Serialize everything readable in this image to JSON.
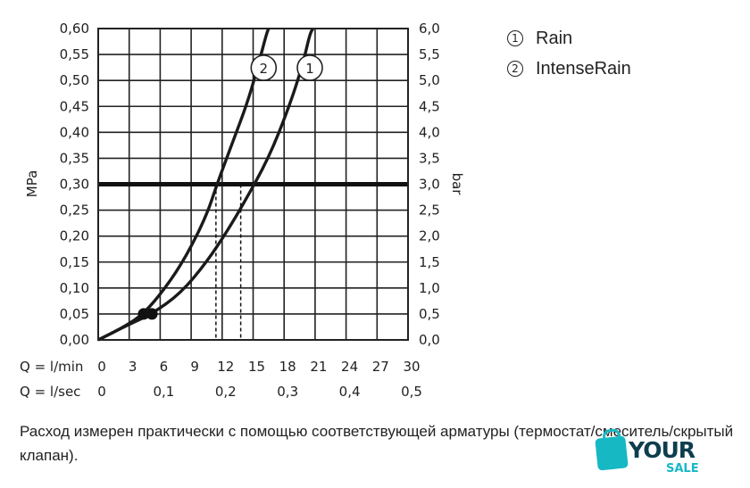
{
  "chart_data": {
    "type": "line",
    "x_unit_label": "Q = l/min",
    "x_secondary_label": "Q = l/sec",
    "xlim": [
      0,
      30
    ],
    "x_ticks": [
      "0",
      "3",
      "6",
      "9",
      "12",
      "15",
      "18",
      "21",
      "24",
      "27",
      "30"
    ],
    "x_secondary_ticks": [
      {
        "x": 0,
        "label": "0"
      },
      {
        "x": 6,
        "label": "0,1"
      },
      {
        "x": 12,
        "label": "0,2"
      },
      {
        "x": 18,
        "label": "0,3"
      },
      {
        "x": 24,
        "label": "0,4"
      },
      {
        "x": 30,
        "label": "0,5"
      }
    ],
    "ylabel": "MPa",
    "ylim": [
      0,
      0.6
    ],
    "y_ticks": [
      "0,00",
      "0,05",
      "0,10",
      "0,15",
      "0,20",
      "0,25",
      "0,30",
      "0,35",
      "0,40",
      "0,45",
      "0,50",
      "0,55",
      "0,60"
    ],
    "y2label": "bar",
    "y2_ticks": [
      "0,0",
      "0,5",
      "1,0",
      "1,5",
      "2,0",
      "2,5",
      "3,0",
      "3,5",
      "4,0",
      "4,5",
      "5,0",
      "5,5",
      "6,0"
    ],
    "reference_line": {
      "y": 0.3
    },
    "series": [
      {
        "name": "1",
        "points": [
          [
            0,
            0
          ],
          [
            3,
            0.03
          ],
          [
            5.2,
            0.05
          ],
          [
            8,
            0.09
          ],
          [
            10.5,
            0.15
          ],
          [
            12.5,
            0.21
          ],
          [
            14,
            0.26
          ],
          [
            16.5,
            0.35
          ],
          [
            18.5,
            0.45
          ],
          [
            19.8,
            0.53
          ],
          [
            20.5,
            0.59
          ],
          [
            20.8,
            0.6
          ]
        ],
        "marker": {
          "x": 5.2,
          "y": 0.05
        },
        "drop_x": 13.8
      },
      {
        "name": "2",
        "points": [
          [
            0,
            0
          ],
          [
            2.5,
            0.025
          ],
          [
            4.4,
            0.05
          ],
          [
            6.5,
            0.1
          ],
          [
            8.5,
            0.16
          ],
          [
            10.5,
            0.24
          ],
          [
            11.5,
            0.3
          ],
          [
            13,
            0.38
          ],
          [
            14.5,
            0.46
          ],
          [
            15.5,
            0.53
          ],
          [
            16.3,
            0.59
          ],
          [
            16.5,
            0.6
          ]
        ],
        "marker": {
          "x": 4.4,
          "y": 0.05
        },
        "drop_x": 11.4
      }
    ]
  },
  "legend": [
    {
      "num": "1",
      "label": "Rain"
    },
    {
      "num": "2",
      "label": "IntenseRain"
    }
  ],
  "caption": "Расход измерен практически с помощью соответствующей арматуры (термостат/смеситель/скрытый клапан).",
  "logo": {
    "word1": "YOUR",
    "word2": "SALE"
  }
}
